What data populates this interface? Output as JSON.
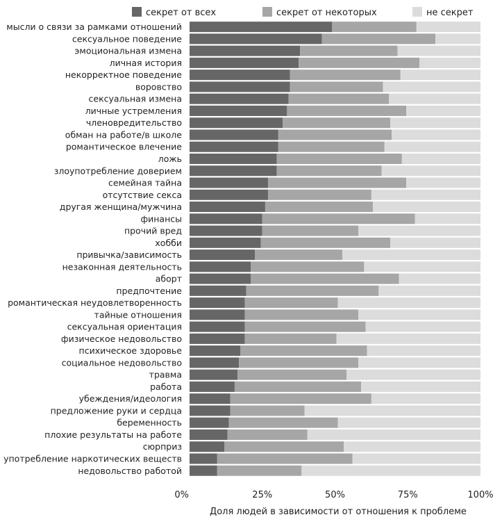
{
  "chart_data": {
    "type": "bar",
    "orientation": "horizontal",
    "stacked": true,
    "xlabel": "Доля людей в зависимости от отношения к проблеме",
    "ylabel": "",
    "xlim": [
      0,
      100
    ],
    "xticks": [
      "0%",
      "25%",
      "50%",
      "75%",
      "100%"
    ],
    "legend_position": "top",
    "colors": [
      "#666666",
      "#a6a6a6",
      "#dcdcdc"
    ],
    "categories": [
      "мысли о связи за рамками отношений",
      "сексуальное поведение",
      "эмоциональная измена",
      "личная история",
      "некорректное поведение",
      "воровство",
      "сексуальная измена",
      "личные устремления",
      "членовредительство",
      "обман на работе/в школе",
      "романтическое влечение",
      "ложь",
      "злоупотребление доверием",
      "семейная тайна",
      "отсутствие секса",
      "другая женщина/мужчина",
      "финансы",
      "прочий вред",
      "хобби",
      "привычка/зависимость",
      "незаконная деятельность",
      "аборт",
      "предпочтение",
      "романтическая неудовлетворенность",
      "тайные отношения",
      "сексуальная ориентация",
      "физическое недовольство",
      "психическое здоровье",
      "социальное недовольство",
      "травма",
      "работа",
      "убеждения/идеология",
      "предложение руки и сердца",
      "беременность",
      "плохие результаты на работе",
      "сюрприз",
      "употребление наркотических веществ",
      "недовольство работой"
    ],
    "series": [
      {
        "name": "секрет от всех",
        "values": [
          49,
          45.5,
          38,
          37.5,
          34.5,
          34.5,
          34,
          33.5,
          32,
          30.5,
          30.5,
          30,
          30,
          27,
          27,
          26,
          25,
          25,
          24.5,
          22.5,
          21,
          21,
          19.5,
          19,
          19,
          19,
          19,
          17.5,
          17,
          16.5,
          15.5,
          14,
          14,
          13.5,
          13,
          12,
          9.5,
          9.5
        ]
      },
      {
        "name": "секрет от некоторых",
        "values": [
          29,
          39,
          33.5,
          41.5,
          38,
          32,
          34.5,
          41,
          37,
          39,
          36.5,
          43,
          36,
          47.5,
          35.5,
          37,
          52.5,
          33,
          44.5,
          30,
          39,
          51,
          45.5,
          32,
          39,
          41.5,
          31.5,
          43.5,
          41,
          37.5,
          43.5,
          48.5,
          25.5,
          37.5,
          27.5,
          41,
          46.5,
          29
        ]
      },
      {
        "name": "не секрет",
        "values": [
          22,
          15.5,
          28.5,
          21,
          27.5,
          33.5,
          31.5,
          25.5,
          31,
          30.5,
          33,
          27,
          34,
          25.5,
          37.5,
          37,
          22.5,
          42,
          31,
          47.5,
          40,
          28,
          35,
          49,
          42,
          39.5,
          49.5,
          39,
          42,
          46,
          41,
          37.5,
          60.5,
          49,
          59.5,
          47,
          44,
          61.5
        ]
      }
    ]
  }
}
